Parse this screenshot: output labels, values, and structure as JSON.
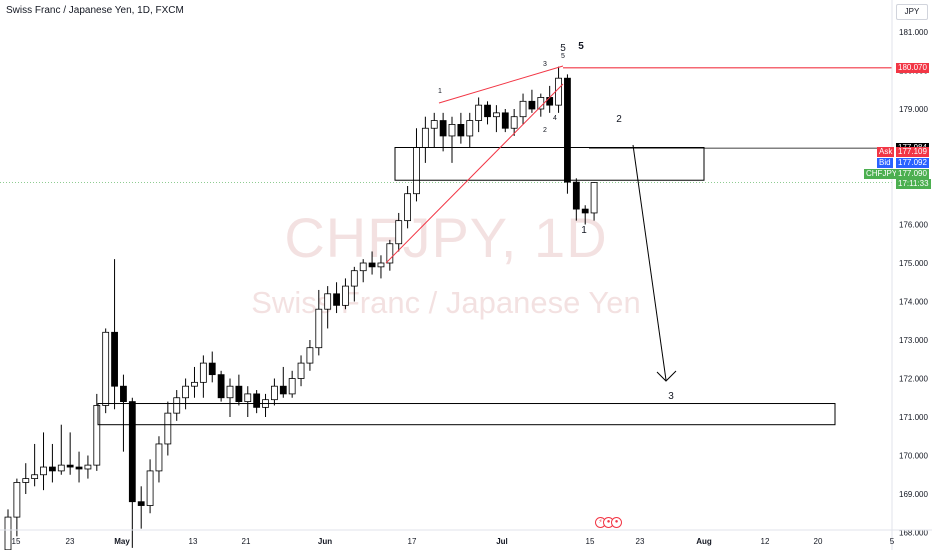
{
  "header": {
    "title": "Swiss Franc / Japanese Yen, 1D, FXCM"
  },
  "watermark": {
    "symbol": "CHFJPY, 1D",
    "name": "Swiss Franc / Japanese Yen"
  },
  "price_axis": {
    "currency": "JPY",
    "ticks": [
      "181.000",
      "180.000",
      "179.000",
      "178.000",
      "177.000",
      "176.000",
      "175.000",
      "174.000",
      "173.000",
      "172.000",
      "171.000",
      "170.000",
      "169.000",
      "168.000"
    ]
  },
  "price_tags": {
    "red_line": "180.070",
    "resistance": "177.984",
    "ask_label": "Ask",
    "ask_value": "177.109",
    "bid_label": "Bid",
    "bid_value": "177.092",
    "symbol_label": "CHFJPY",
    "last_value": "177.090",
    "countdown": "17:11:33"
  },
  "colors": {
    "red": "#f23645",
    "blue": "#2962ff",
    "green": "#4caf50",
    "dark": "#000000",
    "blue_wave": "#2962ff"
  },
  "chart_data": {
    "type": "candlestick",
    "title": "Swiss Franc / Japanese Yen, 1D, FXCM",
    "x_ticks": [
      {
        "label": "15",
        "bold": false
      },
      {
        "label": "23",
        "bold": false
      },
      {
        "label": "May",
        "bold": true
      },
      {
        "label": "13",
        "bold": false
      },
      {
        "label": "21",
        "bold": false
      },
      {
        "label": "Jun",
        "bold": true
      },
      {
        "label": "17",
        "bold": false
      },
      {
        "label": "Jul",
        "bold": true
      },
      {
        "label": "15",
        "bold": false
      },
      {
        "label": "23",
        "bold": false
      },
      {
        "label": "Aug",
        "bold": true
      },
      {
        "label": "12",
        "bold": false
      },
      {
        "label": "20",
        "bold": false
      },
      {
        "label": "5",
        "bold": false
      }
    ],
    "ylim": [
      167.4,
      181.4
    ],
    "candles": [
      {
        "o": 167.55,
        "h": 168.6,
        "l": 167.5,
        "c": 168.4
      },
      {
        "o": 168.4,
        "h": 169.4,
        "l": 167.9,
        "c": 169.3
      },
      {
        "o": 169.3,
        "h": 169.8,
        "l": 169.0,
        "c": 169.4
      },
      {
        "o": 169.4,
        "h": 170.3,
        "l": 169.2,
        "c": 169.5
      },
      {
        "o": 169.5,
        "h": 170.6,
        "l": 169.1,
        "c": 169.7
      },
      {
        "o": 169.7,
        "h": 170.3,
        "l": 169.3,
        "c": 169.6
      },
      {
        "o": 169.6,
        "h": 170.8,
        "l": 169.5,
        "c": 169.75
      },
      {
        "o": 169.75,
        "h": 170.6,
        "l": 169.5,
        "c": 169.7
      },
      {
        "o": 169.7,
        "h": 170.1,
        "l": 169.3,
        "c": 169.65
      },
      {
        "o": 169.65,
        "h": 170.0,
        "l": 169.4,
        "c": 169.75
      },
      {
        "o": 169.75,
        "h": 171.6,
        "l": 169.6,
        "c": 171.3
      },
      {
        "o": 171.3,
        "h": 173.3,
        "l": 171.1,
        "c": 173.2
      },
      {
        "o": 173.2,
        "h": 175.1,
        "l": 171.2,
        "c": 171.8
      },
      {
        "o": 171.8,
        "h": 172.1,
        "l": 170.1,
        "c": 171.4
      },
      {
        "o": 171.4,
        "h": 171.5,
        "l": 167.6,
        "c": 168.8
      },
      {
        "o": 168.8,
        "h": 169.2,
        "l": 168.1,
        "c": 168.7
      },
      {
        "o": 168.7,
        "h": 169.9,
        "l": 168.5,
        "c": 169.6
      },
      {
        "o": 169.6,
        "h": 170.5,
        "l": 169.3,
        "c": 170.3
      },
      {
        "o": 170.3,
        "h": 171.4,
        "l": 170.0,
        "c": 171.1
      },
      {
        "o": 171.1,
        "h": 171.7,
        "l": 170.9,
        "c": 171.5
      },
      {
        "o": 171.5,
        "h": 172.0,
        "l": 171.2,
        "c": 171.8
      },
      {
        "o": 171.8,
        "h": 172.3,
        "l": 171.5,
        "c": 171.9
      },
      {
        "o": 171.9,
        "h": 172.6,
        "l": 171.5,
        "c": 172.4
      },
      {
        "o": 172.4,
        "h": 172.7,
        "l": 171.9,
        "c": 172.1
      },
      {
        "o": 172.1,
        "h": 172.2,
        "l": 171.4,
        "c": 171.5
      },
      {
        "o": 171.5,
        "h": 172.0,
        "l": 171.0,
        "c": 171.8
      },
      {
        "o": 171.8,
        "h": 172.1,
        "l": 171.3,
        "c": 171.4
      },
      {
        "o": 171.4,
        "h": 171.8,
        "l": 171.0,
        "c": 171.6
      },
      {
        "o": 171.6,
        "h": 171.7,
        "l": 171.1,
        "c": 171.25
      },
      {
        "o": 171.25,
        "h": 171.6,
        "l": 171.0,
        "c": 171.45
      },
      {
        "o": 171.45,
        "h": 172.0,
        "l": 171.3,
        "c": 171.8
      },
      {
        "o": 171.8,
        "h": 172.3,
        "l": 171.5,
        "c": 171.6
      },
      {
        "o": 171.6,
        "h": 172.2,
        "l": 171.5,
        "c": 172.0
      },
      {
        "o": 172.0,
        "h": 172.6,
        "l": 171.8,
        "c": 172.4
      },
      {
        "o": 172.4,
        "h": 173.0,
        "l": 172.2,
        "c": 172.8
      },
      {
        "o": 172.8,
        "h": 174.3,
        "l": 172.6,
        "c": 173.8
      },
      {
        "o": 173.8,
        "h": 174.4,
        "l": 173.3,
        "c": 174.2
      },
      {
        "o": 174.2,
        "h": 174.5,
        "l": 173.7,
        "c": 173.9
      },
      {
        "o": 173.9,
        "h": 174.6,
        "l": 173.8,
        "c": 174.4
      },
      {
        "o": 174.4,
        "h": 174.9,
        "l": 174.0,
        "c": 174.8
      },
      {
        "o": 174.8,
        "h": 175.1,
        "l": 174.5,
        "c": 175.0
      },
      {
        "o": 175.0,
        "h": 175.3,
        "l": 174.7,
        "c": 174.9
      },
      {
        "o": 174.9,
        "h": 175.2,
        "l": 174.6,
        "c": 175.0
      },
      {
        "o": 175.0,
        "h": 175.6,
        "l": 174.8,
        "c": 175.5
      },
      {
        "o": 175.5,
        "h": 176.3,
        "l": 175.3,
        "c": 176.1
      },
      {
        "o": 176.1,
        "h": 177.0,
        "l": 175.9,
        "c": 176.8
      },
      {
        "o": 176.8,
        "h": 178.5,
        "l": 176.6,
        "c": 178.0
      },
      {
        "o": 178.0,
        "h": 178.8,
        "l": 177.6,
        "c": 178.5
      },
      {
        "o": 178.5,
        "h": 178.9,
        "l": 178.0,
        "c": 178.7
      },
      {
        "o": 178.7,
        "h": 178.9,
        "l": 177.9,
        "c": 178.3
      },
      {
        "o": 178.3,
        "h": 178.8,
        "l": 177.6,
        "c": 178.6
      },
      {
        "o": 178.6,
        "h": 178.9,
        "l": 178.1,
        "c": 178.3
      },
      {
        "o": 178.3,
        "h": 178.9,
        "l": 178.0,
        "c": 178.7
      },
      {
        "o": 178.7,
        "h": 179.3,
        "l": 178.4,
        "c": 179.1
      },
      {
        "o": 179.1,
        "h": 179.2,
        "l": 178.6,
        "c": 178.8
      },
      {
        "o": 178.8,
        "h": 179.1,
        "l": 178.4,
        "c": 178.9
      },
      {
        "o": 178.9,
        "h": 179.0,
        "l": 178.4,
        "c": 178.5
      },
      {
        "o": 178.5,
        "h": 179.0,
        "l": 178.3,
        "c": 178.8
      },
      {
        "o": 178.8,
        "h": 179.4,
        "l": 178.6,
        "c": 179.2
      },
      {
        "o": 179.2,
        "h": 179.5,
        "l": 178.9,
        "c": 179.0
      },
      {
        "o": 179.0,
        "h": 179.4,
        "l": 178.8,
        "c": 179.3
      },
      {
        "o": 179.3,
        "h": 179.6,
        "l": 178.9,
        "c": 179.1
      },
      {
        "o": 179.1,
        "h": 180.1,
        "l": 178.9,
        "c": 179.8
      },
      {
        "o": 179.8,
        "h": 179.9,
        "l": 176.8,
        "c": 177.1
      },
      {
        "o": 177.1,
        "h": 177.2,
        "l": 176.1,
        "c": 176.4
      },
      {
        "o": 176.4,
        "h": 176.5,
        "l": 176.0,
        "c": 176.3
      },
      {
        "o": 176.3,
        "h": 177.1,
        "l": 176.1,
        "c": 177.09
      }
    ],
    "annotations": {
      "wave_labels_small": [
        "1",
        "2",
        "3",
        "4",
        "5"
      ],
      "wave_labels": [
        "5",
        "5",
        "1",
        "2",
        "3"
      ],
      "zones": [
        {
          "low": 177.15,
          "high": 178.0
        },
        {
          "low": 170.8,
          "high": 171.35
        }
      ],
      "red_horizontal": 180.07,
      "resistance_line": 177.984
    }
  }
}
